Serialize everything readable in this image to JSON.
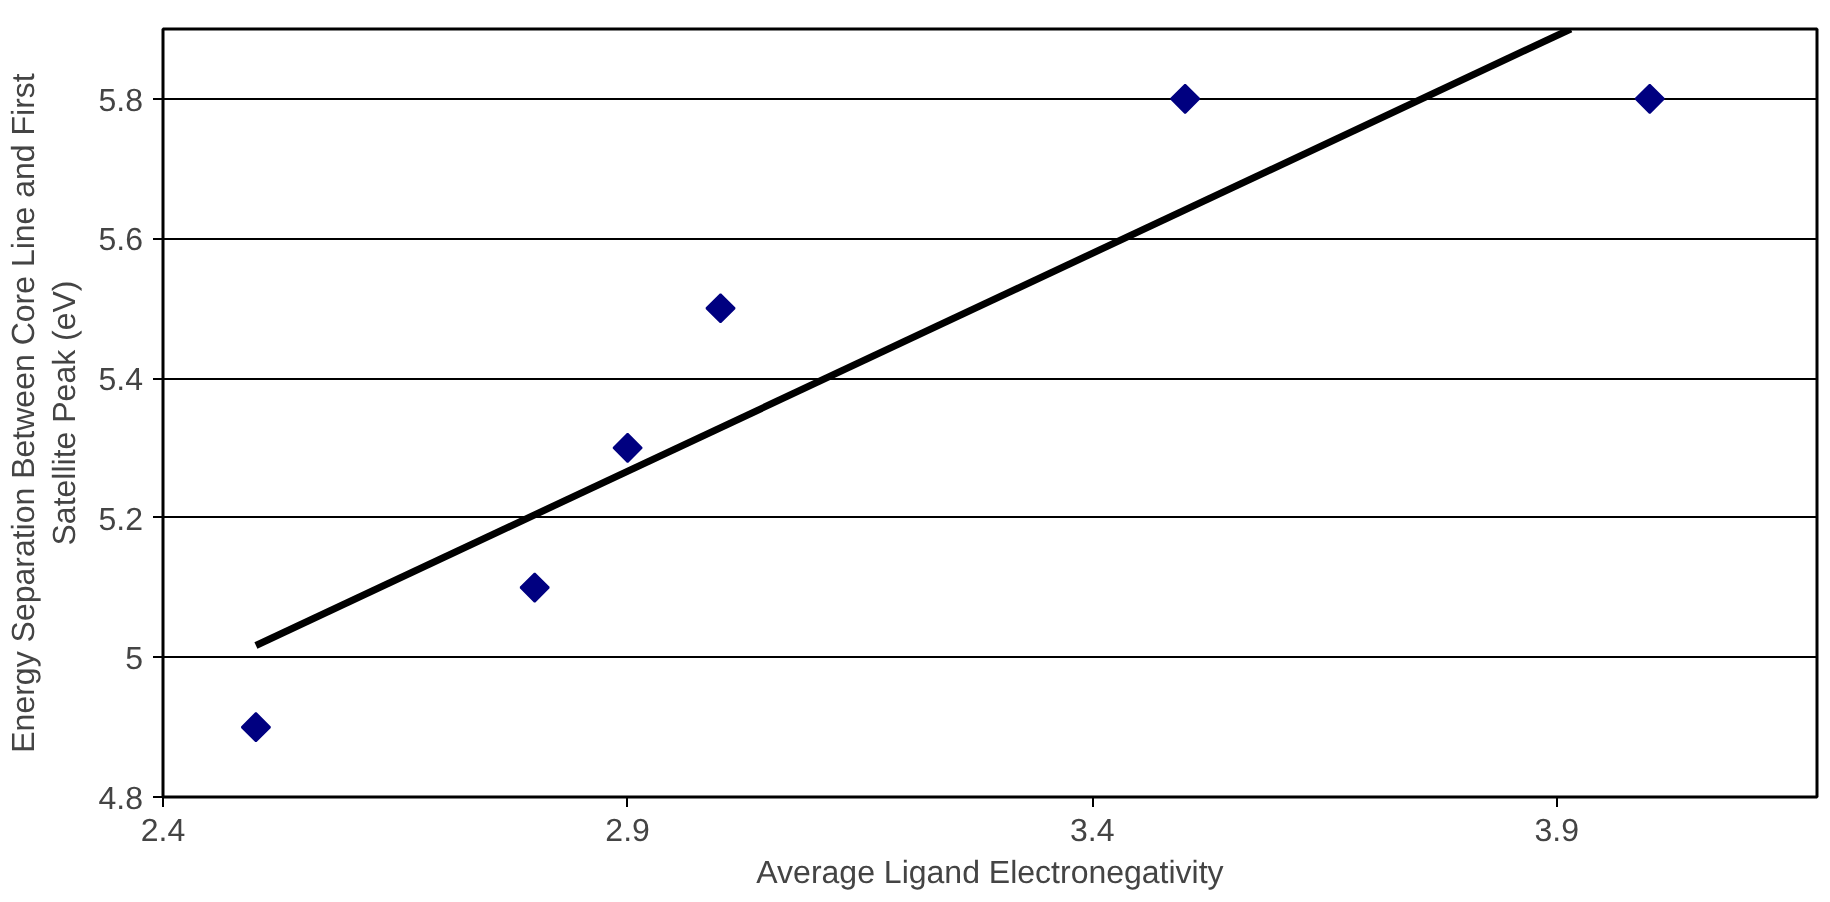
{
  "chart_data": {
    "type": "scatter",
    "xlabel": "Average Ligand Electronegativity",
    "ylabel": "Energy Separation Between Core Line and First Satellite Peak (eV)",
    "x": [
      2.5,
      2.8,
      2.9,
      3.0,
      3.5,
      4.0
    ],
    "series": [
      {
        "color": "#000080",
        "values": [
          4.9,
          5.1,
          5.3,
          5.5,
          5.8,
          5.8
        ],
        "marker": "diamond"
      },
      {
        "type": "line",
        "color": "#000000",
        "x": [
          2.5,
          3.915
        ],
        "values": [
          5.017,
          5.9
        ],
        "marker": "none"
      }
    ],
    "xlim": [
      2.4,
      4.18
    ],
    "ylim": [
      4.8,
      5.9
    ],
    "xticks": [
      2.4,
      2.9,
      3.4,
      3.9
    ],
    "yticks": [
      4.8,
      5,
      5.2,
      5.4,
      5.6,
      5.8
    ],
    "grid": "y"
  }
}
